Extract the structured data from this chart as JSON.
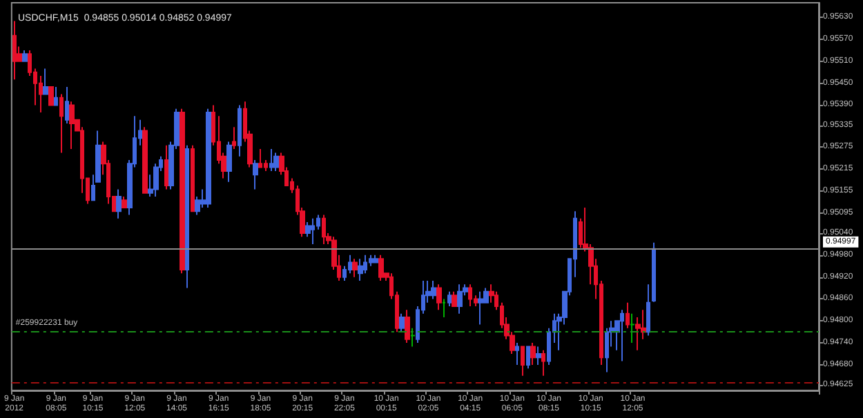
{
  "chart_data": {
    "type": "candlestick",
    "title": "USDCHF,M15  0.94855 0.95014 0.94852 0.94997",
    "categories": [
      "9 Jan 2012",
      null,
      null,
      null,
      null,
      null,
      null,
      null,
      "9 Jan 08:05",
      null,
      null,
      null,
      null,
      null,
      null,
      "9 Jan 10:15",
      null,
      null,
      null,
      null,
      null,
      null,
      null,
      "9 Jan 12:05",
      null,
      null,
      null,
      null,
      null,
      null,
      null,
      "9 Jan 14:05",
      null,
      null,
      null,
      null,
      null,
      null,
      null,
      "9 Jan 16:15",
      null,
      null,
      null,
      null,
      null,
      null,
      null,
      "9 Jan 18:05",
      null,
      null,
      null,
      null,
      null,
      null,
      null,
      "9 Jan 20:15",
      null,
      null,
      null,
      null,
      null,
      null,
      null,
      "9 Jan 22:05",
      null,
      null,
      null,
      null,
      null,
      null,
      null,
      "10 Jan 00:15",
      null,
      null,
      null,
      null,
      null,
      null,
      null,
      "10 Jan 02:05",
      null,
      null,
      null,
      null,
      null,
      null,
      null,
      "10 Jan 04:15",
      null,
      null,
      null,
      null,
      null,
      null,
      null,
      "10 Jan 06:05",
      null,
      null,
      null,
      null,
      null,
      null,
      "10 Jan 08:15",
      null,
      null,
      null,
      null,
      null,
      null,
      null,
      "10 Jan 10:15",
      null,
      null,
      null,
      null,
      null,
      null,
      null,
      "10 Jan 12:05",
      null,
      null,
      null,
      null,
      null,
      null,
      null,
      null,
      null,
      null,
      null,
      null,
      null,
      null,
      null,
      null,
      null,
      null,
      null,
      null,
      null,
      null,
      null,
      null,
      null,
      null,
      null,
      null,
      null,
      null,
      null,
      null,
      null,
      null,
      null
    ],
    "ohlc": [
      [
        0.9558,
        0.9562,
        0.9546,
        0.9551
      ],
      [
        0.9553,
        0.9555,
        0.9551,
        0.9551
      ],
      [
        0.9551,
        0.9554,
        0.9551,
        0.9553
      ],
      [
        0.9553,
        0.9554,
        0.9547,
        0.9548
      ],
      [
        0.9548,
        0.9549,
        0.9539,
        0.9545
      ],
      [
        0.9545,
        0.9547,
        0.9537,
        0.9542
      ],
      [
        0.9542,
        0.9549,
        0.9542,
        0.9544
      ],
      [
        0.9544,
        0.9544,
        0.9539,
        0.9539
      ],
      [
        0.9539,
        0.9544,
        0.9539,
        0.9541
      ],
      [
        0.9541,
        0.9542,
        0.9526,
        0.9536
      ],
      [
        0.9535,
        0.9544,
        0.9534,
        0.954
      ],
      [
        0.9539,
        0.954,
        0.9527,
        0.9534
      ],
      [
        0.9535,
        0.9535,
        0.9532,
        0.9532
      ],
      [
        0.9532,
        0.9533,
        0.9515,
        0.9519
      ],
      [
        0.9519,
        0.9519,
        0.9512,
        0.9513
      ],
      [
        0.9513,
        0.952,
        0.9513,
        0.9517
      ],
      [
        0.9518,
        0.9532,
        0.9518,
        0.9528
      ],
      [
        0.9528,
        0.9529,
        0.952,
        0.9523
      ],
      [
        0.9523,
        0.9524,
        0.9512,
        0.9514
      ],
      [
        0.9514,
        0.9514,
        0.951,
        0.951
      ],
      [
        0.951,
        0.9516,
        0.9508,
        0.9514
      ],
      [
        0.9513,
        0.9514,
        0.9511,
        0.9511
      ],
      [
        0.9511,
        0.9524,
        0.9509,
        0.9523
      ],
      [
        0.9523,
        0.9536,
        0.9522,
        0.953
      ],
      [
        0.953,
        0.9535,
        0.9528,
        0.9532
      ],
      [
        0.9532,
        0.9533,
        0.9515,
        0.9515
      ],
      [
        0.9515,
        0.952,
        0.9514,
        0.9516
      ],
      [
        0.9516,
        0.9523,
        0.9514,
        0.9522
      ],
      [
        0.9522,
        0.9525,
        0.9521,
        0.9524
      ],
      [
        0.9524,
        0.9528,
        0.9516,
        0.9517
      ],
      [
        0.9517,
        0.9529,
        0.9516,
        0.9528
      ],
      [
        0.9528,
        0.9538,
        0.9527,
        0.9537
      ],
      [
        0.9537,
        0.9538,
        0.9493,
        0.9494
      ],
      [
        0.9494,
        0.9528,
        0.9489,
        0.9527
      ],
      [
        0.9527,
        0.9528,
        0.951,
        0.951
      ],
      [
        0.951,
        0.9514,
        0.9509,
        0.9513
      ],
      [
        0.9512,
        0.9516,
        0.9511,
        0.9513
      ],
      [
        0.9512,
        0.9538,
        0.9511,
        0.9537
      ],
      [
        0.9537,
        0.9539,
        0.9528,
        0.9529
      ],
      [
        0.9529,
        0.9536,
        0.9523,
        0.9524
      ],
      [
        0.9525,
        0.9526,
        0.9519,
        0.9521
      ],
      [
        0.9521,
        0.9529,
        0.9518,
        0.9528
      ],
      [
        0.9529,
        0.9533,
        0.9527,
        0.9528
      ],
      [
        0.9528,
        0.9539,
        0.9525,
        0.9538
      ],
      [
        0.9538,
        0.954,
        0.9529,
        0.953
      ],
      [
        0.9531,
        0.9532,
        0.9522,
        0.9523
      ],
      [
        0.952,
        0.9524,
        0.9516,
        0.9523
      ],
      [
        0.9523,
        0.9527,
        0.9522,
        0.9522
      ],
      [
        0.9523,
        0.9524,
        0.9521,
        0.9522
      ],
      [
        0.9522,
        0.9527,
        0.9521,
        0.9523
      ],
      [
        0.9522,
        0.9526,
        0.9521,
        0.9525
      ],
      [
        0.9525,
        0.9526,
        0.952,
        0.9521
      ],
      [
        0.9521,
        0.9522,
        0.9517,
        0.9517
      ],
      [
        0.9518,
        0.9519,
        0.9515,
        0.9516
      ],
      [
        0.9516,
        0.9517,
        0.9509,
        0.951
      ],
      [
        0.951,
        0.9511,
        0.9503,
        0.9504
      ],
      [
        0.9504,
        0.9507,
        0.9503,
        0.9506
      ],
      [
        0.9505,
        0.9508,
        0.9501,
        0.9506
      ],
      [
        0.9506,
        0.9509,
        0.9505,
        0.9508
      ],
      [
        0.9508,
        0.9509,
        0.9501,
        0.9503
      ],
      [
        0.9503,
        0.9504,
        0.9501,
        0.9502
      ],
      [
        0.9502,
        0.9503,
        0.9494,
        0.9495
      ],
      [
        0.9495,
        0.9498,
        0.9491,
        0.9492
      ],
      [
        0.9492,
        0.9495,
        0.9491,
        0.9494
      ],
      [
        0.9494,
        0.9498,
        0.9493,
        0.9496
      ],
      [
        0.9496,
        0.9497,
        0.9492,
        0.9494
      ],
      [
        0.9493,
        0.9497,
        0.9491,
        0.9495
      ],
      [
        0.9494,
        0.9498,
        0.9493,
        0.9496
      ],
      [
        0.9496,
        0.9498,
        0.9495,
        0.9497
      ],
      [
        0.9496,
        0.9498,
        0.9496,
        0.9497
      ],
      [
        0.9497,
        0.9498,
        0.9491,
        0.9492
      ],
      [
        0.9493,
        0.9493,
        0.9491,
        0.9492
      ],
      [
        0.9492,
        0.9493,
        0.9486,
        0.9487
      ],
      [
        0.9487,
        0.9488,
        0.9477,
        0.9478
      ],
      [
        0.9478,
        0.9482,
        0.9477,
        0.9481
      ],
      [
        0.9481,
        0.9483,
        0.9474,
        0.9475
      ],
      [
        0.9476,
        0.9478,
        0.9473,
        0.9476
      ],
      [
        0.9475,
        0.9484,
        0.9474,
        0.9483
      ],
      [
        0.9483,
        0.9491,
        0.9482,
        0.9487
      ],
      [
        0.9487,
        0.9491,
        0.9485,
        0.9488
      ],
      [
        0.9487,
        0.9491,
        0.9486,
        0.9489
      ],
      [
        0.9489,
        0.949,
        0.9483,
        0.9485
      ],
      [
        0.9485,
        0.9486,
        0.9481,
        0.9485
      ],
      [
        0.9485,
        0.9488,
        0.9484,
        0.9487
      ],
      [
        0.9487,
        0.9488,
        0.9484,
        0.9484
      ],
      [
        0.9484,
        0.949,
        0.9482,
        0.9488
      ],
      [
        0.9488,
        0.949,
        0.9487,
        0.9489
      ],
      [
        0.9489,
        0.949,
        0.9484,
        0.9486
      ],
      [
        0.9486,
        0.9487,
        0.9484,
        0.9485
      ],
      [
        0.9485,
        0.9488,
        0.9479,
        0.9486
      ],
      [
        0.9485,
        0.9489,
        0.9485,
        0.9488
      ],
      [
        0.9488,
        0.949,
        0.9485,
        0.9487
      ],
      [
        0.9487,
        0.9488,
        0.9483,
        0.9484
      ],
      [
        0.9484,
        0.9485,
        0.9478,
        0.9479
      ],
      [
        0.9479,
        0.9481,
        0.9475,
        0.9476
      ],
      [
        0.9476,
        0.9477,
        0.9471,
        0.9472
      ],
      [
        0.9472,
        0.9474,
        0.9468,
        0.9473
      ],
      [
        0.9473,
        0.9473,
        0.9465,
        0.9468
      ],
      [
        0.9468,
        0.9473,
        0.9467,
        0.9473
      ],
      [
        0.9473,
        0.9474,
        0.9468,
        0.947
      ],
      [
        0.947,
        0.9473,
        0.9468,
        0.9471
      ],
      [
        0.9471,
        0.9472,
        0.9465,
        0.9469
      ],
      [
        0.9469,
        0.9478,
        0.9468,
        0.9477
      ],
      [
        0.9477,
        0.9482,
        0.9474,
        0.948
      ],
      [
        0.948,
        0.9482,
        0.9472,
        0.9481
      ],
      [
        0.9481,
        0.9488,
        0.9479,
        0.9488
      ],
      [
        0.9488,
        0.9497,
        0.9487,
        0.9497
      ],
      [
        0.9497,
        0.951,
        0.9492,
        0.9508
      ],
      [
        0.9507,
        0.9508,
        0.95,
        0.9501
      ],
      [
        0.9501,
        0.9511,
        0.9499,
        0.95
      ],
      [
        0.95,
        0.9501,
        0.949,
        0.9495
      ],
      [
        0.9495,
        0.9497,
        0.9486,
        0.949
      ],
      [
        0.949,
        0.9491,
        0.9468,
        0.947
      ],
      [
        0.947,
        0.9478,
        0.9466,
        0.9477
      ],
      [
        0.9477,
        0.948,
        0.9473,
        0.9478
      ],
      [
        0.9477,
        0.948,
        0.9472,
        0.948
      ],
      [
        0.948,
        0.9483,
        0.9469,
        0.9482
      ],
      [
        0.9482,
        0.9485,
        0.9478,
        0.9479
      ],
      [
        0.9479,
        0.9482,
        0.9474,
        0.9479
      ],
      [
        0.9479,
        0.9481,
        0.9472,
        0.9478
      ],
      [
        0.9478,
        0.9483,
        0.9475,
        0.9477
      ],
      [
        0.9477,
        0.949,
        0.9476,
        0.9485
      ],
      [
        0.94855,
        0.95014,
        0.94852,
        0.94997
      ],
      null,
      null,
      null,
      null,
      null,
      null,
      null,
      null,
      null,
      null,
      null,
      null,
      null,
      null,
      null,
      null,
      null,
      null,
      null,
      null,
      null,
      null,
      null,
      null,
      null,
      null,
      null,
      null,
      null,
      null,
      null
    ],
    "colors": [
      "#e8102a",
      "#e8102a",
      "#4169e1",
      "#e8102a",
      "#e8102a",
      "#e8102a",
      "#4169e1",
      "#e8102a",
      "#4169e1",
      "#e8102a",
      "#4169e1",
      "#e8102a",
      "#e8102a",
      "#e8102a",
      "#e8102a",
      "#4169e1",
      "#4169e1",
      "#e8102a",
      "#e8102a",
      "#e8102a",
      "#4169e1",
      "#e8102a",
      "#4169e1",
      "#4169e1",
      "#4169e1",
      "#e8102a",
      "#4169e1",
      "#4169e1",
      "#4169e1",
      "#e8102a",
      "#4169e1",
      "#4169e1",
      "#e8102a",
      "#4169e1",
      "#e8102a",
      "#4169e1",
      "#4169e1",
      "#4169e1",
      "#e8102a",
      "#e8102a",
      "#e8102a",
      "#4169e1",
      "#e8102a",
      "#4169e1",
      "#e8102a",
      "#e8102a",
      "#4169e1",
      "#e8102a",
      "#e8102a",
      "#4169e1",
      "#4169e1",
      "#e8102a",
      "#e8102a",
      "#e8102a",
      "#e8102a",
      "#e8102a",
      "#4169e1",
      "#4169e1",
      "#4169e1",
      "#e8102a",
      "#e8102a",
      "#e8102a",
      "#e8102a",
      "#4169e1",
      "#4169e1",
      "#e8102a",
      "#4169e1",
      "#4169e1",
      "#4169e1",
      "#4169e1",
      "#e8102a",
      "#e8102a",
      "#e8102a",
      "#e8102a",
      "#4169e1",
      "#e8102a",
      "#00b000",
      "#4169e1",
      "#4169e1",
      "#4169e1",
      "#4169e1",
      "#e8102a",
      "#00b000",
      "#4169e1",
      "#e8102a",
      "#4169e1",
      "#4169e1",
      "#e8102a",
      "#e8102a",
      "#4169e1",
      "#4169e1",
      "#e8102a",
      "#e8102a",
      "#e8102a",
      "#e8102a",
      "#e8102a",
      "#4169e1",
      "#e8102a",
      "#4169e1",
      "#e8102a",
      "#4169e1",
      "#e8102a",
      "#4169e1",
      "#4169e1",
      "#4169e1",
      "#4169e1",
      "#4169e1",
      "#4169e1",
      "#e8102a",
      "#e8102a",
      "#e8102a",
      "#e8102a",
      "#e8102a",
      "#4169e1",
      "#4169e1",
      "#4169e1",
      "#4169e1",
      "#e8102a",
      "#00b000",
      "#e8102a",
      "#e8102a",
      "#4169e1",
      "#4169e1",
      null,
      null,
      null,
      null,
      null,
      null,
      null,
      null,
      null,
      null,
      null,
      null,
      null,
      null,
      null,
      null,
      null,
      null,
      null,
      null,
      null,
      null,
      null,
      null,
      null,
      null,
      null,
      null,
      null,
      null,
      null
    ],
    "ylim": [
      0.9461,
      0.9567
    ],
    "yticks": [
      {
        "value": 0.94625,
        "label": "0.94625"
      },
      {
        "value": 0.9468,
        "label": "0.94680"
      },
      {
        "value": 0.9474,
        "label": "0.94740"
      },
      {
        "value": 0.948,
        "label": "0.94800"
      },
      {
        "value": 0.9486,
        "label": "0.94860"
      },
      {
        "value": 0.9492,
        "label": "0.94920"
      },
      {
        "value": 0.9498,
        "label": "0.94980"
      },
      {
        "value": 0.9504,
        "label": "0.95040"
      },
      {
        "value": 0.95095,
        "label": "0.95095"
      },
      {
        "value": 0.95155,
        "label": "0.95155"
      },
      {
        "value": 0.95215,
        "label": "0.95215"
      },
      {
        "value": 0.95275,
        "label": "0.95275"
      },
      {
        "value": 0.95335,
        "label": "0.95335"
      },
      {
        "value": 0.9539,
        "label": "0.95390"
      },
      {
        "value": 0.9545,
        "label": "0.95450"
      },
      {
        "value": 0.9551,
        "label": "0.95510"
      },
      {
        "value": 0.9557,
        "label": "0.95570"
      },
      {
        "value": 0.9563,
        "label": "0.95630"
      }
    ],
    "ref_lines": [
      {
        "axis": "y",
        "value": 0.94997,
        "label": "0.94997",
        "color": "#8c8c8c"
      },
      {
        "axis": "y",
        "value": 0.9477,
        "label": "#259922231 buy",
        "color": "#1a8f1a",
        "line_style": "dashed"
      },
      {
        "axis": "y",
        "value": 0.9463,
        "color": "#a01010",
        "line_style": "dashed"
      }
    ],
    "grid": false
  }
}
